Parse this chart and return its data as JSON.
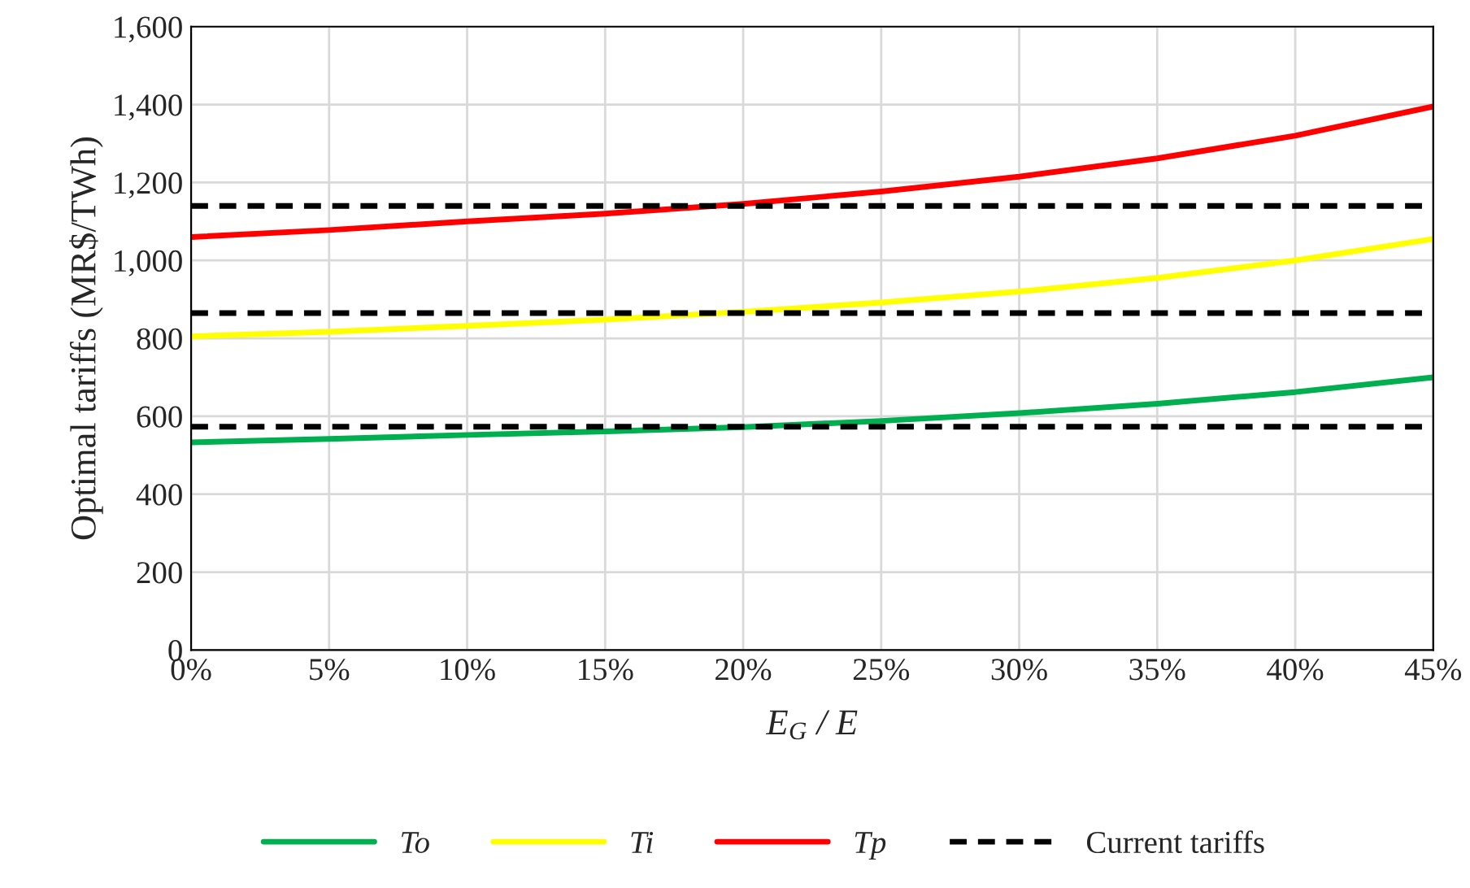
{
  "chart_data": {
    "type": "line",
    "xlabel": "E$_{G}$ / E",
    "ylabel": "Optimal tariffs (MR$/TWh)",
    "x": [
      0,
      5,
      10,
      15,
      20,
      25,
      30,
      35,
      40,
      45
    ],
    "series": [
      {
        "name": "To",
        "color": "#00b050",
        "values": [
          533,
          542,
          552,
          561,
          572,
          588,
          608,
          632,
          662,
          700
        ]
      },
      {
        "name": "Ti",
        "color": "#ffff00",
        "values": [
          805,
          817,
          832,
          848,
          868,
          892,
          920,
          955,
          1000,
          1055
        ]
      },
      {
        "name": "Tp",
        "color": "#ff0000",
        "values": [
          1060,
          1078,
          1100,
          1120,
          1145,
          1177,
          1215,
          1262,
          1320,
          1395
        ]
      }
    ],
    "ref_lines": [
      {
        "axis": "y",
        "value": 1140,
        "label": "Current tariffs",
        "color": "#000000",
        "line_style": "dashed"
      },
      {
        "axis": "y",
        "value": 865,
        "label": null,
        "color": "#000000",
        "line_style": "dashed"
      },
      {
        "axis": "y",
        "value": 573,
        "label": null,
        "color": "#000000",
        "line_style": "dashed"
      }
    ],
    "xlim": [
      0,
      45
    ],
    "ylim": [
      0,
      1600
    ],
    "xticks": [
      {
        "value": 0,
        "label": "0%"
      },
      {
        "value": 5,
        "label": "5%"
      },
      {
        "value": 10,
        "label": "10%"
      },
      {
        "value": 15,
        "label": "15%"
      },
      {
        "value": 20,
        "label": "20%"
      },
      {
        "value": 25,
        "label": "25%"
      },
      {
        "value": 30,
        "label": "30%"
      },
      {
        "value": 35,
        "label": "35%"
      },
      {
        "value": 40,
        "label": "40%"
      },
      {
        "value": 45,
        "label": "45%"
      }
    ],
    "yticks": [
      0,
      200,
      400,
      600,
      800,
      {
        "value": 1000,
        "label": "1,000"
      },
      {
        "value": 1200,
        "label": "1,200"
      },
      {
        "value": 1400,
        "label": "1,400"
      },
      {
        "value": 1600,
        "label": "1,600"
      }
    ],
    "grid": true,
    "legend": "bottom",
    "marker": "none",
    "line_style": "solid"
  }
}
